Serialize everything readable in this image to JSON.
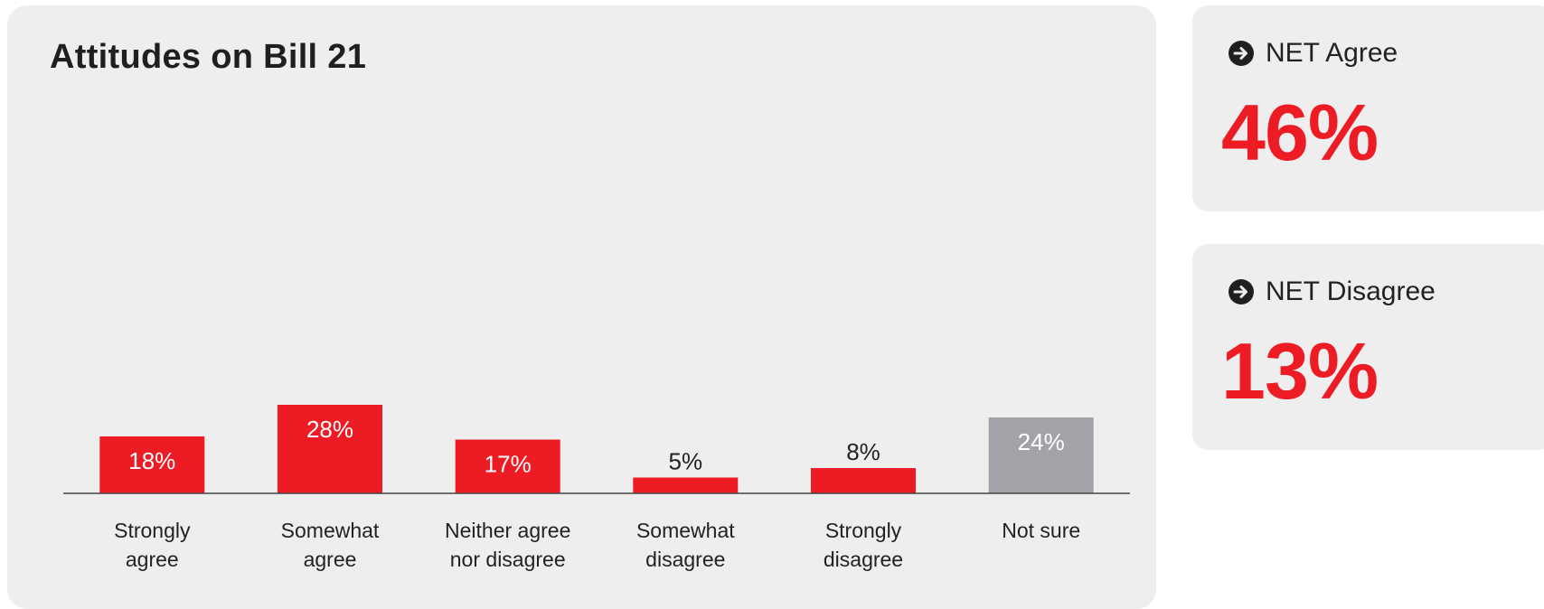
{
  "chart_data": {
    "type": "bar",
    "title": "Attitudes on Bill 21",
    "categories": [
      [
        "Strongly",
        "agree"
      ],
      [
        "Somewhat",
        "agree"
      ],
      [
        "Neither agree",
        "nor disagree"
      ],
      [
        "Somewhat",
        "disagree"
      ],
      [
        "Strongly",
        "disagree"
      ],
      [
        "Not sure"
      ]
    ],
    "values": [
      18,
      28,
      17,
      5,
      8,
      24
    ],
    "value_labels": [
      "18%",
      "28%",
      "17%",
      "5%",
      "8%",
      "24%"
    ],
    "colors": [
      "#ed1c24",
      "#ed1c24",
      "#ed1c24",
      "#ed1c24",
      "#ed1c24",
      "#a2a3a9"
    ],
    "value_label_colors": [
      "#ffffff",
      "#ffffff",
      "#ffffff",
      "#222222",
      "#222222",
      "#ffffff"
    ],
    "xlabel": "",
    "ylabel": "",
    "ylim": [
      0,
      100
    ],
    "grid": false,
    "legend": "none"
  },
  "net": {
    "agree": {
      "label": "NET Agree",
      "value": "46%",
      "icon": "arrow-right-circle-icon"
    },
    "disagree": {
      "label": "NET Disagree",
      "value": "13%",
      "icon": "arrow-right-circle-icon"
    }
  },
  "colors": {
    "accent": "#ed1c24",
    "neutral": "#a2a3a9",
    "panel": "#eeeeee"
  }
}
